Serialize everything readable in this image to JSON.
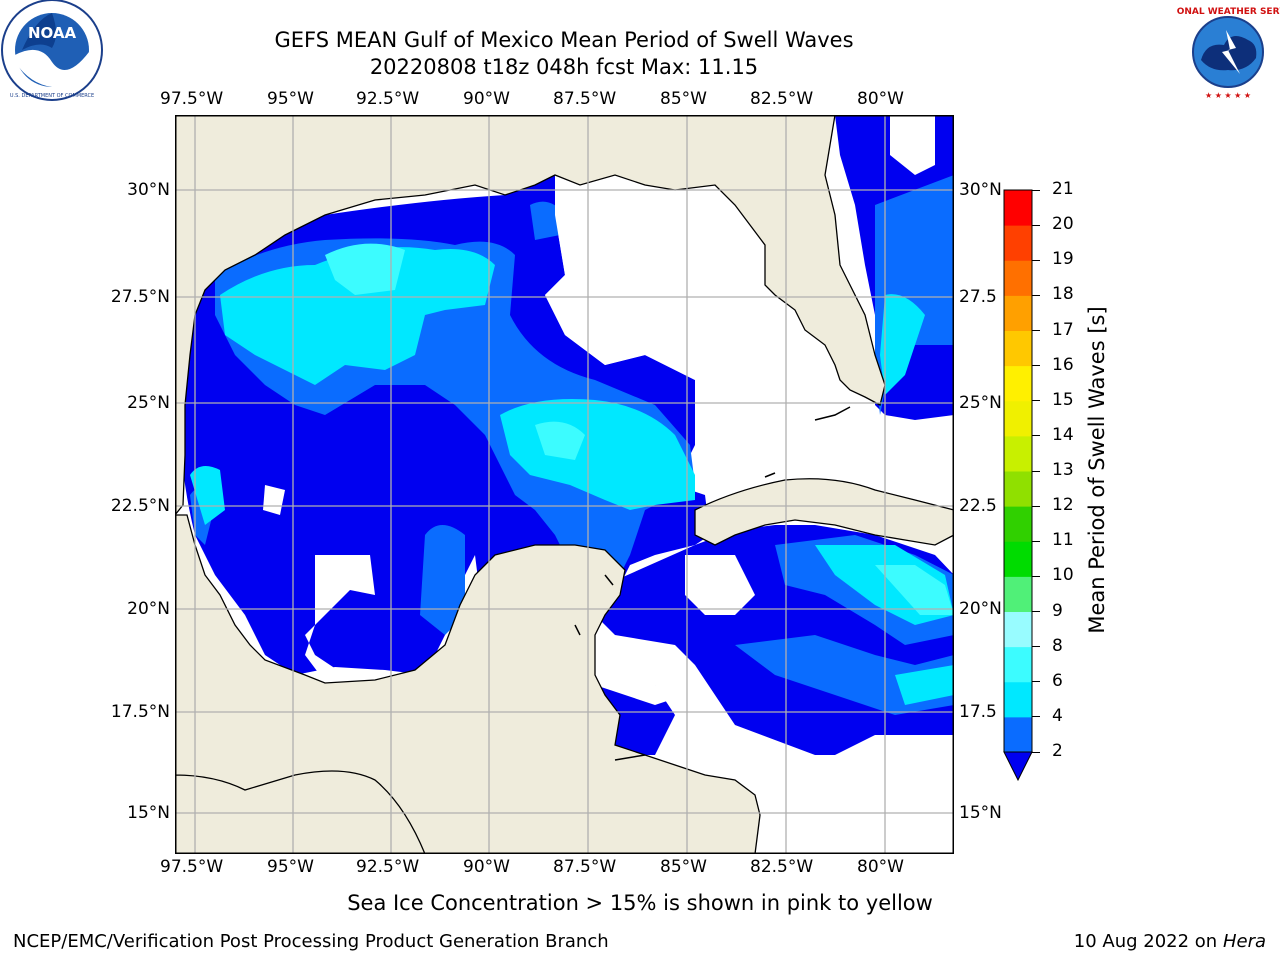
{
  "title": {
    "line1": "GEFS MEAN Gulf of Mexico Mean Period of Swell Waves",
    "line2": "20220808 t18z 048h fcst   Max: 11.15"
  },
  "logos": {
    "left": {
      "icon": "noaa-logo",
      "text": "NOAA",
      "ring": "NATIONAL OCEANIC AND ATMOSPHERIC ADMINISTRATION · U.S. DEPARTMENT OF COMMERCE"
    },
    "right": {
      "icon": "nws-logo",
      "ring": "NATIONAL WEATHER SERVICE"
    }
  },
  "map": {
    "lon_labels": [
      "97.5°W",
      "95°W",
      "92.5°W",
      "90°W",
      "87.5°W",
      "85°W",
      "82.5°W",
      "80°W"
    ],
    "lat_labels_left": [
      "30°N",
      "27.5°N",
      "25°N",
      "22.5°N",
      "20°N",
      "17.5°N",
      "15°N"
    ],
    "lat_labels_right": [
      "30°N",
      "27.5",
      "25°N",
      "22.5",
      "20°N",
      "17.5",
      "15°N"
    ],
    "land_color": "#efecdc",
    "grid_color": "#b0b0b0"
  },
  "colorbar": {
    "label": "Mean Period of Swell Waves [s]",
    "ticks": [
      "2",
      "4",
      "6",
      "8",
      "9",
      "10",
      "11",
      "12",
      "13",
      "14",
      "15",
      "16",
      "17",
      "18",
      "19",
      "20",
      "21"
    ],
    "colors": [
      "#0000f0",
      "#0a6cff",
      "#00e8ff",
      "#3cfcff",
      "#98fcff",
      "#50f078",
      "#00dc00",
      "#30d000",
      "#90e000",
      "#c8f000",
      "#f0f000",
      "#fff000",
      "#ffc800",
      "#ffa000",
      "#ff7000",
      "#ff4000",
      "#ff0000"
    ]
  },
  "footer": {
    "ice_note": "Sea Ice Concentration > 15% is shown in pink to yellow",
    "branch": "NCEP/EMC/Verification Post Processing Product Generation Branch",
    "date": "10 Aug 2022 on",
    "host": "Hera"
  }
}
